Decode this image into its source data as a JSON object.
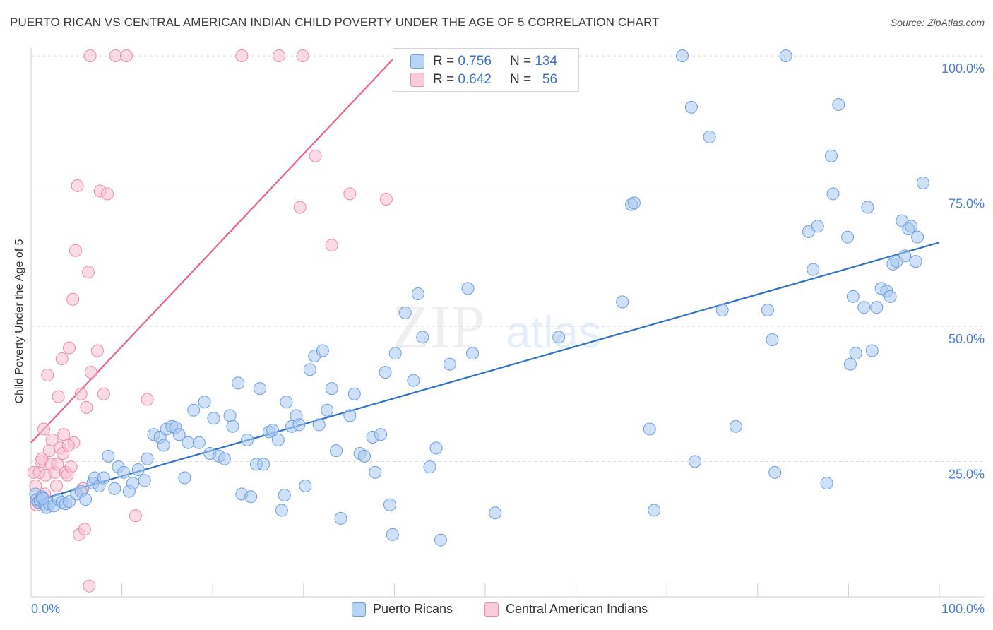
{
  "title": "PUERTO RICAN VS CENTRAL AMERICAN INDIAN CHILD POVERTY UNDER THE AGE OF 5 CORRELATION CHART",
  "source": "Source: ZipAtlas.com",
  "watermark": {
    "zip": "ZIP",
    "atlas": "atlas"
  },
  "legend": {
    "rows": [
      {
        "r_label": "R =",
        "r_value": "0.756",
        "n_label": "N =",
        "n_value": "134"
      },
      {
        "r_label": "R =",
        "r_value": "0.642",
        "n_label": "N =",
        "n_value": "56"
      }
    ]
  },
  "colors": {
    "blue_fill": "#a9c8f0",
    "blue_stroke": "#6a9ee0",
    "blue_line": "#2f73c9",
    "pink_fill": "#f7c0d0",
    "pink_stroke": "#ec8aa8",
    "pink_line": "#e8628f",
    "tick_label": "#4a7fcf"
  },
  "chart_data": {
    "type": "scatter",
    "xlabel": "",
    "ylabel": "Child Poverty Under the Age of 5",
    "xlim": [
      0,
      100
    ],
    "ylim": [
      0,
      100
    ],
    "x_tick_labels": [
      "0.0%",
      "100.0%"
    ],
    "y_ticks": [
      25,
      50,
      75,
      100
    ],
    "y_tick_labels": [
      "25.0%",
      "50.0%",
      "75.0%",
      "100.0%"
    ],
    "grid": true,
    "series": [
      {
        "name": "Puerto Ricans",
        "color": "#6a9ee0",
        "r": 0.756,
        "n": 134,
        "trend": {
          "x": [
            0,
            100
          ],
          "y": [
            17.5,
            65.5
          ]
        },
        "points": [
          [
            0.5,
            19
          ],
          [
            0.6,
            18
          ],
          [
            0.8,
            17.5
          ],
          [
            1.0,
            17.8
          ],
          [
            1.2,
            18.5
          ],
          [
            1.5,
            17
          ],
          [
            1.7,
            16.5
          ],
          [
            2.0,
            17.2
          ],
          [
            2.5,
            16.8
          ],
          [
            3.0,
            18
          ],
          [
            3.4,
            17.5
          ],
          [
            3.8,
            17.2
          ],
          [
            4.2,
            17.6
          ],
          [
            5.0,
            19
          ],
          [
            5.5,
            19.5
          ],
          [
            6.0,
            18
          ],
          [
            6.8,
            21
          ],
          [
            7.0,
            22
          ],
          [
            7.5,
            20.5
          ],
          [
            8.0,
            22
          ],
          [
            8.5,
            26
          ],
          [
            9.2,
            20
          ],
          [
            9.6,
            24
          ],
          [
            10.2,
            23
          ],
          [
            10.8,
            19.5
          ],
          [
            11.2,
            21
          ],
          [
            11.8,
            23.5
          ],
          [
            12.5,
            21.5
          ],
          [
            12.8,
            25.5
          ],
          [
            13.5,
            30
          ],
          [
            14.2,
            29.5
          ],
          [
            14.6,
            28
          ],
          [
            14.9,
            31
          ],
          [
            15.5,
            31.5
          ],
          [
            15.9,
            31.3
          ],
          [
            16.3,
            30
          ],
          [
            16.9,
            22
          ],
          [
            17.3,
            28.5
          ],
          [
            17.9,
            34.5
          ],
          [
            18.5,
            28.5
          ],
          [
            19.1,
            36
          ],
          [
            19.7,
            26.5
          ],
          [
            20.1,
            33
          ],
          [
            20.7,
            26
          ],
          [
            21.3,
            25.5
          ],
          [
            21.9,
            33.5
          ],
          [
            22.2,
            31.5
          ],
          [
            22.8,
            39.5
          ],
          [
            23.2,
            19
          ],
          [
            23.8,
            29
          ],
          [
            24.2,
            18.5
          ],
          [
            24.8,
            24.5
          ],
          [
            25.2,
            38.5
          ],
          [
            25.6,
            24.5
          ],
          [
            26.2,
            30.5
          ],
          [
            26.6,
            30.8
          ],
          [
            27.2,
            29
          ],
          [
            27.6,
            16
          ],
          [
            27.9,
            18.8
          ],
          [
            28.1,
            36
          ],
          [
            28.7,
            31.5
          ],
          [
            29.2,
            33.5
          ],
          [
            29.5,
            31.8
          ],
          [
            30.2,
            20.5
          ],
          [
            30.7,
            42
          ],
          [
            31.2,
            44.5
          ],
          [
            31.7,
            31.8
          ],
          [
            32.1,
            45.5
          ],
          [
            32.6,
            34.5
          ],
          [
            33.1,
            38.5
          ],
          [
            33.6,
            27
          ],
          [
            34.1,
            14.5
          ],
          [
            35.1,
            33.5
          ],
          [
            35.6,
            37.5
          ],
          [
            36.2,
            26.5
          ],
          [
            36.7,
            26
          ],
          [
            37.6,
            29.5
          ],
          [
            37.9,
            23
          ],
          [
            38.5,
            30
          ],
          [
            39.0,
            41.5
          ],
          [
            39.5,
            17
          ],
          [
            39.8,
            11.5
          ],
          [
            40.1,
            45
          ],
          [
            41.2,
            52.5
          ],
          [
            42.1,
            40
          ],
          [
            42.6,
            56
          ],
          [
            43.1,
            48
          ],
          [
            43.9,
            24
          ],
          [
            44.6,
            27.5
          ],
          [
            45.1,
            10.5
          ],
          [
            46.1,
            43
          ],
          [
            48.1,
            57
          ],
          [
            48.6,
            45
          ],
          [
            51.1,
            15.5
          ],
          [
            58.1,
            48
          ],
          [
            65.1,
            54.5
          ],
          [
            66.1,
            72.5
          ],
          [
            66.4,
            72.8
          ],
          [
            68.1,
            31
          ],
          [
            68.6,
            16
          ],
          [
            71.7,
            100
          ],
          [
            72.7,
            90.5
          ],
          [
            73.1,
            25
          ],
          [
            74.7,
            85
          ],
          [
            76.1,
            53
          ],
          [
            77.6,
            31.5
          ],
          [
            81.1,
            53
          ],
          [
            81.6,
            47.5
          ],
          [
            81.9,
            23
          ],
          [
            83.1,
            100
          ],
          [
            85.6,
            67.5
          ],
          [
            86.1,
            60.5
          ],
          [
            86.6,
            68.5
          ],
          [
            87.6,
            21
          ],
          [
            88.1,
            81.5
          ],
          [
            88.3,
            74.5
          ],
          [
            88.9,
            91
          ],
          [
            89.9,
            66.5
          ],
          [
            90.2,
            43
          ],
          [
            90.5,
            55.5
          ],
          [
            90.8,
            45
          ],
          [
            91.7,
            53.5
          ],
          [
            92.1,
            72
          ],
          [
            92.6,
            45.5
          ],
          [
            93.1,
            53.5
          ],
          [
            93.6,
            57
          ],
          [
            94.2,
            56.5
          ],
          [
            94.6,
            55.5
          ],
          [
            94.9,
            61.5
          ],
          [
            95.3,
            62
          ],
          [
            95.9,
            69.5
          ],
          [
            96.2,
            63
          ],
          [
            96.6,
            68
          ],
          [
            96.9,
            68.5
          ],
          [
            97.4,
            62
          ],
          [
            97.6,
            66.5
          ],
          [
            98.2,
            76.5
          ],
          [
            1.3,
            18.2
          ]
        ]
      },
      {
        "name": "Central American Indians",
        "color": "#ec8aa8",
        "r": 0.642,
        "n": 56,
        "trend": {
          "x": [
            0,
            40.2
          ],
          "y": [
            28.5,
            100
          ]
        },
        "points": [
          [
            0.3,
            23
          ],
          [
            0.5,
            20.5
          ],
          [
            0.7,
            18
          ],
          [
            0.9,
            23
          ],
          [
            1.1,
            25
          ],
          [
            1.4,
            31
          ],
          [
            1.6,
            22.5
          ],
          [
            1.8,
            41
          ],
          [
            2.0,
            27
          ],
          [
            2.2,
            24.5
          ],
          [
            2.3,
            29
          ],
          [
            2.6,
            23
          ],
          [
            2.8,
            20.5
          ],
          [
            3.0,
            37
          ],
          [
            3.2,
            27.5
          ],
          [
            3.4,
            44
          ],
          [
            3.5,
            26.5
          ],
          [
            3.8,
            23
          ],
          [
            4.0,
            22.5
          ],
          [
            4.2,
            46
          ],
          [
            4.4,
            24
          ],
          [
            4.6,
            55
          ],
          [
            4.7,
            28.5
          ],
          [
            4.9,
            64
          ],
          [
            5.1,
            76
          ],
          [
            5.3,
            11.5
          ],
          [
            5.5,
            37.5
          ],
          [
            5.7,
            20
          ],
          [
            5.9,
            12.5
          ],
          [
            6.1,
            35
          ],
          [
            6.3,
            60
          ],
          [
            6.4,
            2
          ],
          [
            6.6,
            41.5
          ],
          [
            6.5,
            100
          ],
          [
            7.3,
            45.5
          ],
          [
            7.6,
            75
          ],
          [
            8.0,
            37.5
          ],
          [
            8.4,
            74.5
          ],
          [
            9.3,
            100
          ],
          [
            10.5,
            100
          ],
          [
            11.5,
            15
          ],
          [
            12.8,
            36.5
          ],
          [
            23.2,
            100
          ],
          [
            27.3,
            100
          ],
          [
            29.6,
            72
          ],
          [
            29.9,
            100
          ],
          [
            31.3,
            81.5
          ],
          [
            33.1,
            65
          ],
          [
            35.1,
            74.5
          ],
          [
            39.1,
            73.5
          ],
          [
            1.2,
            25.5
          ],
          [
            2.9,
            24.5
          ],
          [
            0.6,
            17
          ],
          [
            1.5,
            19
          ],
          [
            3.6,
            30
          ],
          [
            4.1,
            28
          ]
        ]
      }
    ]
  },
  "bottom_legend": [
    "Puerto Ricans",
    "Central American Indians"
  ]
}
